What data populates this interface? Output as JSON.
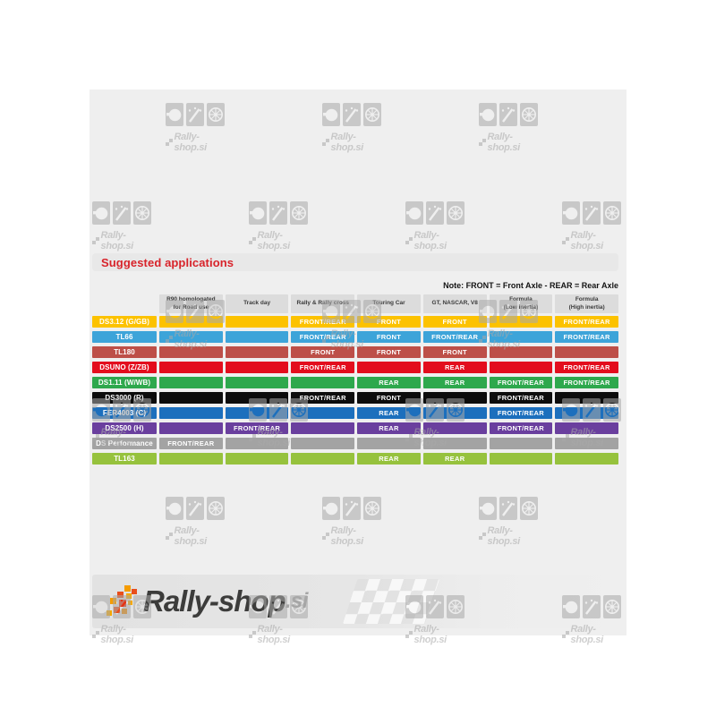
{
  "watermark": {
    "text": "Rally-shop.si"
  },
  "section_title": "Suggested applications",
  "note": "Note: FRONT = Front Axle - REAR = Rear Axle",
  "chart_data": {
    "type": "table",
    "title": "Suggested applications",
    "note": "Note: FRONT = Front Axle - REAR = Rear Axle",
    "columns": [
      "R90 homologated\nfor Road use",
      "Track day",
      "Rally & Rally cross",
      "Touring Car",
      "GT, NASCAR, V8",
      "Formula\n(Low inertia)",
      "Formula\n(High inertia)"
    ],
    "rows": [
      {
        "name": "DS3.12 (G/GB)",
        "color": "#fcc200",
        "values": [
          "",
          "",
          "FRONT/REAR",
          "FRONT",
          "FRONT",
          "",
          "FRONT/REAR"
        ]
      },
      {
        "name": "TL66",
        "color": "#3da4d9",
        "values": [
          "",
          "",
          "FRONT/REAR",
          "FRONT",
          "FRONT/REAR",
          "",
          "FRONT/REAR"
        ]
      },
      {
        "name": "TL180",
        "color": "#bd4f48",
        "values": [
          "",
          "",
          "FRONT",
          "FRONT",
          "FRONT",
          "",
          ""
        ]
      },
      {
        "name": "DSUNO (Z/ZB)",
        "color": "#e30d1d",
        "values": [
          "",
          "",
          "FRONT/REAR",
          "",
          "REAR",
          "",
          "FRONT/REAR"
        ]
      },
      {
        "name": "DS1.11 (W/WB)",
        "color": "#2ea84d",
        "values": [
          "",
          "",
          "",
          "REAR",
          "REAR",
          "FRONT/REAR",
          "FRONT/REAR"
        ]
      },
      {
        "name": "DS3000 (R)",
        "color": "#0c0c0c",
        "values": [
          "",
          "",
          "FRONT/REAR",
          "FRONT",
          "",
          "FRONT/REAR",
          ""
        ]
      },
      {
        "name": "FER4003 (C)",
        "color": "#1c6fbd",
        "values": [
          "",
          "",
          "",
          "REAR",
          "",
          "FRONT/REAR",
          ""
        ]
      },
      {
        "name": "DS2500 (H)",
        "color": "#6a3f9e",
        "values": [
          "",
          "FRONT/REAR",
          "",
          "REAR",
          "",
          "FRONT/REAR",
          ""
        ]
      },
      {
        "name": "DS Performance",
        "color": "#a3a3a3",
        "values": [
          "FRONT/REAR",
          "",
          "",
          "",
          "",
          "",
          ""
        ]
      },
      {
        "name": "TL163",
        "color": "#96c23d",
        "values": [
          "",
          "",
          "",
          "REAR",
          "REAR",
          "",
          ""
        ]
      }
    ]
  },
  "footer": {
    "logo_text": "Rally-shop",
    "logo_suffix": ".si"
  },
  "colors": {
    "accent_red": "#d8232a",
    "panel_gray": "#efefef",
    "header_cell_gray": "#dcdcdc"
  }
}
